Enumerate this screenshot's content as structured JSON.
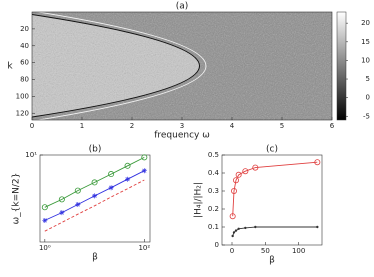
{
  "chart_data": [
    {
      "type": "heatmap",
      "title": "(a)",
      "x_label": "frequency ω",
      "y_label": "k",
      "xlim": [
        0,
        6
      ],
      "xticks": [
        0,
        1,
        2,
        3,
        4,
        5,
        6
      ],
      "ylim": [
        128,
        0
      ],
      "yticks": [
        20,
        40,
        60,
        80,
        100,
        120
      ],
      "clim": [
        -6,
        23
      ],
      "cticks": [
        -5,
        0,
        5,
        10,
        15,
        20
      ]
    },
    {
      "type": "line",
      "title": "(b)",
      "x_label": "β",
      "y_label": "ω_{k=N/2}",
      "log_x": true,
      "log_y": true,
      "xlim": [
        0.8,
        130
      ],
      "xticks": [
        {
          "value": 1,
          "label": "10⁰"
        },
        {
          "value": 100,
          "label": "10²"
        }
      ],
      "ylim": [
        1.5,
        10
      ],
      "yticks": [
        {
          "value": 10,
          "label": "10¹"
        }
      ],
      "x": [
        1,
        2.2,
        4.6,
        10,
        21.5,
        46,
        100
      ],
      "series": [
        {
          "color": "#3a9a3a",
          "marker": "circle",
          "dashed": false,
          "values": [
            3.2,
            3.8,
            4.6,
            5.5,
            6.6,
            7.9,
            9.5
          ]
        },
        {
          "color": "#3030e0",
          "marker": "star",
          "dashed": false,
          "values": [
            2.4,
            2.85,
            3.4,
            4.1,
            4.9,
            5.9,
            7.1
          ]
        },
        {
          "color": "#e04040",
          "marker": "none",
          "dashed": true,
          "values": [
            1.9,
            2.3,
            2.75,
            3.3,
            4.0,
            4.8,
            5.8
          ]
        }
      ]
    },
    {
      "type": "line",
      "title": "(c)",
      "x_label": "β",
      "y_label": "|H₄|/|H₂|",
      "log_x": false,
      "log_y": false,
      "xlim": [
        -15,
        135
      ],
      "xticks": [
        0,
        50,
        100
      ],
      "ylim": [
        0,
        0.5
      ],
      "yticks": [
        0,
        0.1,
        0.2,
        0.3,
        0.4,
        0.5
      ],
      "x": [
        1,
        3,
        6,
        10,
        20,
        35,
        128
      ],
      "series": [
        {
          "color": "#e04040",
          "marker": "circle",
          "dashed": false,
          "values": [
            0.16,
            0.3,
            0.36,
            0.39,
            0.41,
            0.43,
            0.46
          ]
        },
        {
          "color": "#333333",
          "marker": "dot",
          "dashed": false,
          "values": [
            0.05,
            0.07,
            0.08,
            0.09,
            0.095,
            0.1,
            0.1
          ]
        }
      ]
    }
  ]
}
